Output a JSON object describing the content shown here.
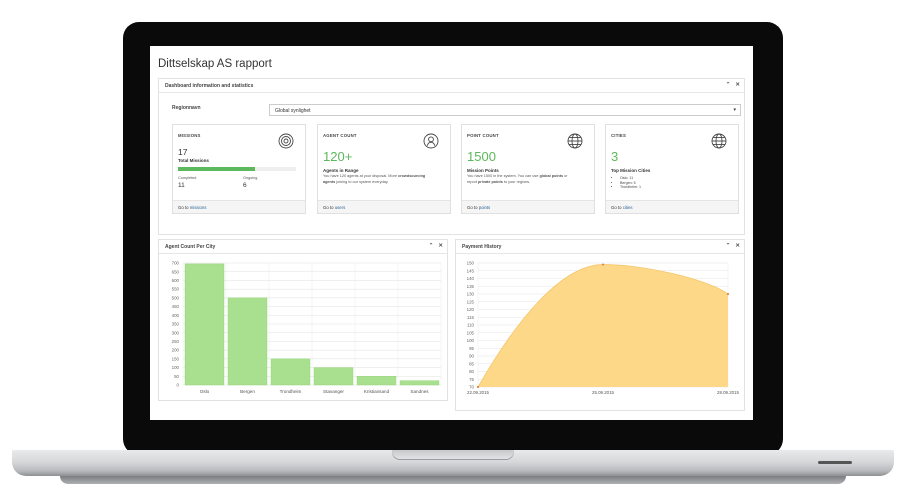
{
  "page": {
    "title": "Dittselskap AS rapport"
  },
  "dashboard_panel": {
    "title": "Dashboard information and statistics",
    "collapse_icon": "chevron-up-icon",
    "close_icon": "close-icon"
  },
  "region": {
    "label": "Regionnavn",
    "selected": "Global synlighet"
  },
  "cards": {
    "missions": {
      "title": "MISSIONS",
      "icon": "target-icon",
      "value": "17",
      "subtitle": "Total Missions",
      "progress": 0.65,
      "completed_label": "Completed",
      "completed_value": "11",
      "ongoing_label": "Ongoing",
      "ongoing_value": "6",
      "footer_prefix": "Go to ",
      "footer_link": "missions"
    },
    "agents": {
      "title": "AGENT COUNT",
      "icon": "user-icon",
      "value": "120+",
      "subtitle": "Agents in Range",
      "text_1": "You have 120 agents at your disposal. More ",
      "text_bold_1": "crowdsourcing",
      "text_bold_2": "agents",
      "text_2": " joining to our system everyday.",
      "footer_prefix": "Go to ",
      "footer_link": "users"
    },
    "points": {
      "title": "POINT COUNT",
      "icon": "globe-icon",
      "value": "1500",
      "subtitle": "Mission Points",
      "text_1": "You have 1500 in the system. You can use ",
      "text_bold_1": "global points",
      "text_2": " or",
      "text_3": "report ",
      "text_bold_2": "private points",
      "text_4": " to your regions.",
      "footer_prefix": "Go to ",
      "footer_link": "points"
    },
    "cities": {
      "title": "CITIES",
      "icon": "globe-icon",
      "value": "3",
      "subtitle": "Top Mission Cities",
      "list": [
        "Oslo: 11",
        "Bergen: 5",
        "Trondheim: 1"
      ],
      "footer_prefix": "Go to ",
      "footer_link": "cities"
    }
  },
  "agent_panel": {
    "title": "Agent Count Per City"
  },
  "payment_panel": {
    "title": "Payment History"
  },
  "chart_data": [
    {
      "type": "bar",
      "title": "Agent Count Per City",
      "categories": [
        "Oslo",
        "Bergen",
        "Trondheim",
        "Stavanger",
        "Kristiansand",
        "Sandnes"
      ],
      "values": [
        695,
        500,
        150,
        100,
        50,
        25
      ],
      "ylim": [
        0,
        700
      ],
      "yticks": [
        0,
        50,
        100,
        150,
        200,
        250,
        300,
        350,
        400,
        450,
        500,
        550,
        600,
        650,
        700
      ],
      "color": "#a9e08f",
      "grid": true
    },
    {
      "type": "area",
      "title": "Payment History",
      "x": [
        "22.09.2015",
        "25.09.2015",
        "28.09.2015"
      ],
      "values": [
        70,
        149,
        130
      ],
      "ylim": [
        70,
        150
      ],
      "yticks": [
        70,
        75,
        80,
        85,
        90,
        95,
        100,
        105,
        110,
        115,
        120,
        125,
        130,
        135,
        140,
        145,
        150
      ],
      "color": "#fdd888",
      "point_color": "#e0854f",
      "grid": true
    }
  ]
}
